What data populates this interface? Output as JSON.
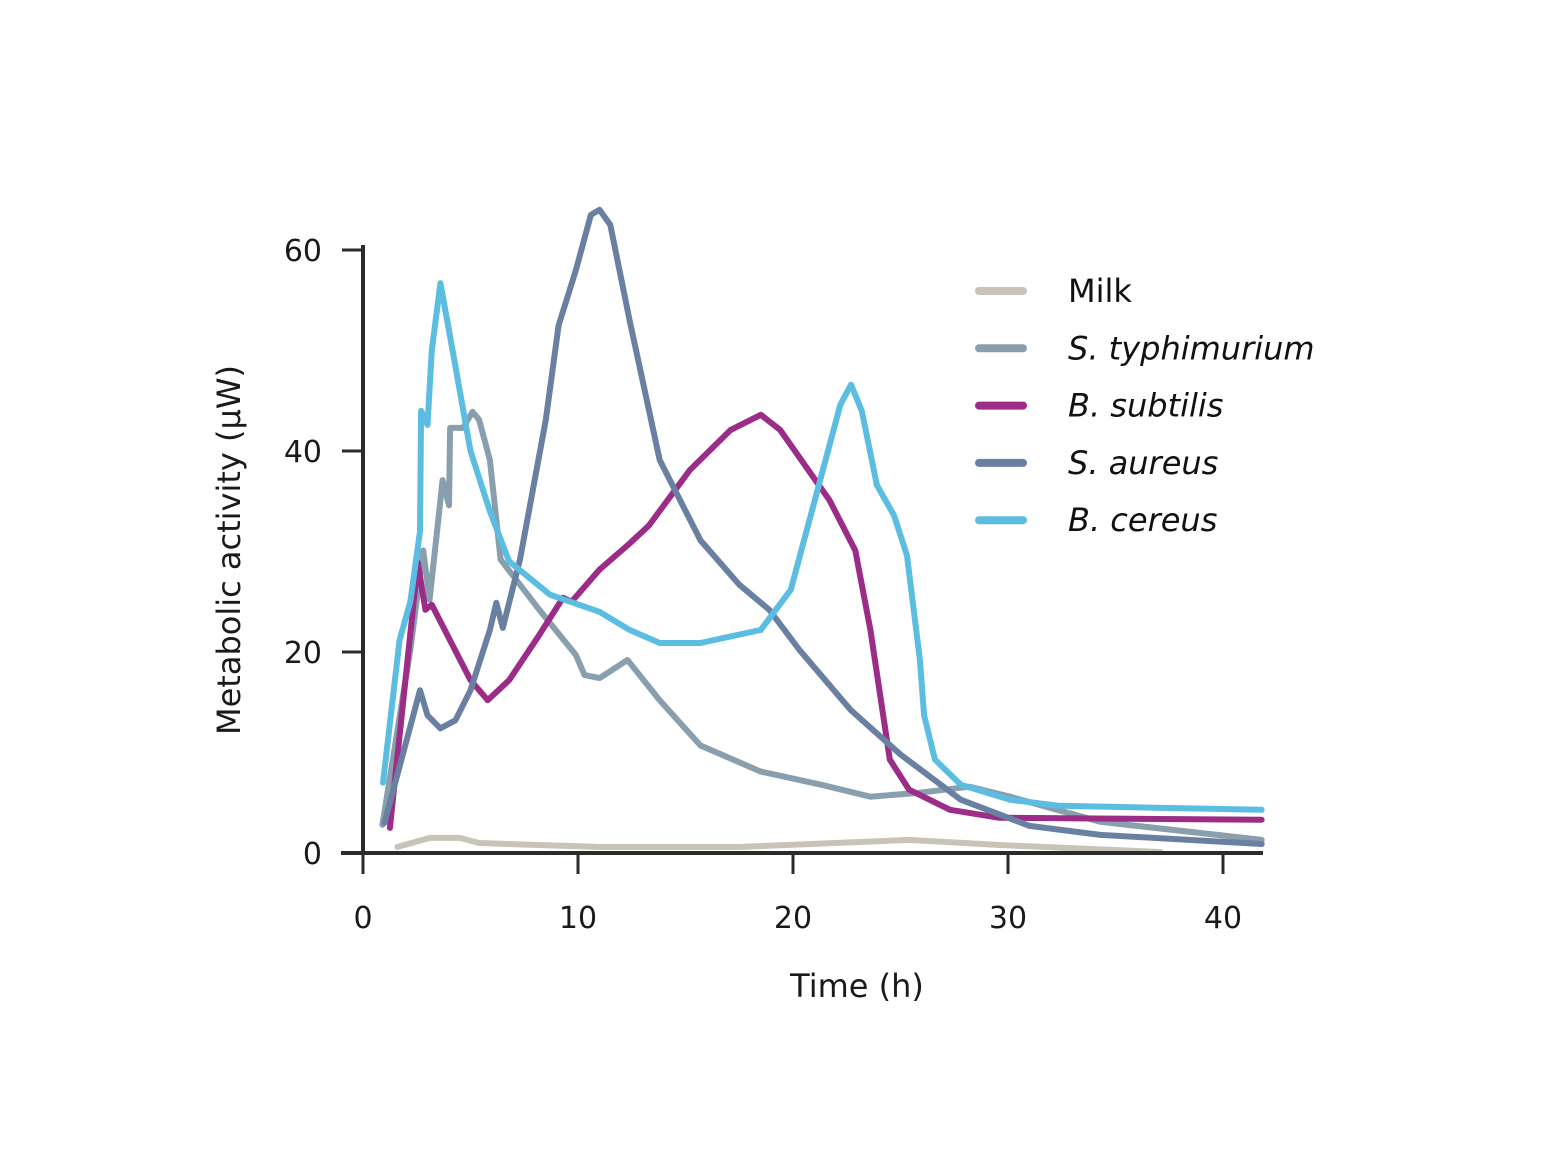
{
  "chart_data": {
    "type": "line",
    "title": "",
    "xlabel": "Time (h)",
    "ylabel": "Metabolic activity (µW)",
    "xlim": [
      0,
      42
    ],
    "ylim": [
      0,
      60
    ],
    "xticks": [
      0,
      10,
      20,
      30,
      40
    ],
    "yticks": [
      0,
      20,
      40,
      60
    ],
    "grid": false,
    "legend_placement": "top-right",
    "series": [
      {
        "name": "Milk",
        "italic": false,
        "color": "#c8c4b8",
        "points": [
          [
            1.6,
            0.6
          ],
          [
            3.1,
            1.5
          ],
          [
            4.5,
            1.5
          ],
          [
            5.4,
            1.0
          ],
          [
            11,
            0.6
          ],
          [
            17.5,
            0.6
          ],
          [
            25.4,
            1.3
          ],
          [
            29.6,
            0.8
          ],
          [
            37.1,
            0.1
          ]
        ]
      },
      {
        "name": "S. typhimurium",
        "italic": true,
        "color": "#8a9fae",
        "points": [
          [
            0.9,
            2.8
          ],
          [
            2.2,
            20.2
          ],
          [
            2.8,
            30.1
          ],
          [
            3.1,
            25.2
          ],
          [
            3.7,
            37.1
          ],
          [
            4.0,
            34.6
          ],
          [
            4.05,
            42.3
          ],
          [
            4.65,
            42.3
          ],
          [
            5.1,
            43.9
          ],
          [
            5.4,
            43.1
          ],
          [
            5.9,
            39.1
          ],
          [
            6.4,
            29.2
          ],
          [
            8.2,
            24.2
          ],
          [
            9.9,
            19.7
          ],
          [
            10.3,
            17.7
          ],
          [
            11,
            17.4
          ],
          [
            12.3,
            19.2
          ],
          [
            13.8,
            15.2
          ],
          [
            15.7,
            10.7
          ],
          [
            18.5,
            8.1
          ],
          [
            21.3,
            6.8
          ],
          [
            23.6,
            5.6
          ],
          [
            25.9,
            6.0
          ],
          [
            28.2,
            6.6
          ],
          [
            30.1,
            5.6
          ],
          [
            34.3,
            3.1
          ],
          [
            41.8,
            1.3
          ]
        ]
      },
      {
        "name": "B. subtilis",
        "italic": true,
        "color": "#9b2c87",
        "points": [
          [
            1.25,
            2.5
          ],
          [
            2.55,
            28.9
          ],
          [
            2.9,
            24.2
          ],
          [
            3.2,
            24.7
          ],
          [
            3.8,
            22.2
          ],
          [
            5.0,
            17.2
          ],
          [
            5.8,
            15.2
          ],
          [
            6.8,
            17.2
          ],
          [
            8.2,
            21.7
          ],
          [
            9.3,
            25.4
          ],
          [
            9.7,
            25.0
          ],
          [
            11,
            28.2
          ],
          [
            12.4,
            30.8
          ],
          [
            13.3,
            32.6
          ],
          [
            15.2,
            38.1
          ],
          [
            17.1,
            42.1
          ],
          [
            18.5,
            43.6
          ],
          [
            19.4,
            42.1
          ],
          [
            21.7,
            35.1
          ],
          [
            22.9,
            30.1
          ],
          [
            23.6,
            22.2
          ],
          [
            24.5,
            9.3
          ],
          [
            25.4,
            6.3
          ],
          [
            27.3,
            4.3
          ],
          [
            29.6,
            3.5
          ],
          [
            41.8,
            3.3
          ]
        ]
      },
      {
        "name": "S. aureus",
        "italic": true,
        "color": "#6a80a2",
        "points": [
          [
            1.0,
            3.0
          ],
          [
            2.65,
            16.2
          ],
          [
            3.0,
            13.7
          ],
          [
            3.6,
            12.4
          ],
          [
            4.3,
            13.2
          ],
          [
            5.0,
            16.2
          ],
          [
            5.9,
            22.2
          ],
          [
            6.2,
            24.9
          ],
          [
            6.5,
            22.4
          ],
          [
            7.3,
            29.2
          ],
          [
            8.5,
            43.1
          ],
          [
            9.1,
            52.5
          ],
          [
            9.9,
            58
          ],
          [
            10.6,
            63.5
          ],
          [
            11,
            64
          ],
          [
            11.5,
            62.5
          ],
          [
            12.4,
            53
          ],
          [
            13.8,
            39.1
          ],
          [
            15.7,
            31.1
          ],
          [
            17.5,
            26.7
          ],
          [
            18.9,
            24.2
          ],
          [
            20.3,
            20.2
          ],
          [
            22.7,
            14.2
          ],
          [
            25,
            9.8
          ],
          [
            27.8,
            5.3
          ],
          [
            31,
            2.7
          ],
          [
            34.3,
            1.8
          ],
          [
            41.8,
            0.9
          ]
        ]
      },
      {
        "name": "B. cereus",
        "italic": true,
        "color": "#5bbde2",
        "points": [
          [
            0.93,
            7
          ],
          [
            1.7,
            21.2
          ],
          [
            2.2,
            25
          ],
          [
            2.65,
            32
          ],
          [
            2.7,
            44
          ],
          [
            3.0,
            42.6
          ],
          [
            3.2,
            50
          ],
          [
            3.6,
            56.7
          ],
          [
            4.0,
            52
          ],
          [
            5.0,
            40
          ],
          [
            5.9,
            34
          ],
          [
            6.8,
            29
          ],
          [
            8.7,
            25.7
          ],
          [
            11,
            24
          ],
          [
            12.4,
            22.2
          ],
          [
            13.8,
            20.9
          ],
          [
            15.7,
            20.9
          ],
          [
            18.5,
            22.2
          ],
          [
            19.9,
            26.2
          ],
          [
            21,
            35
          ],
          [
            22.2,
            44.6
          ],
          [
            22.7,
            46.6
          ],
          [
            23.2,
            44
          ],
          [
            23.9,
            36.6
          ],
          [
            24.7,
            33.6
          ],
          [
            25.3,
            29.6
          ],
          [
            25.9,
            19.2
          ],
          [
            26.1,
            13.7
          ],
          [
            26.6,
            9.3
          ],
          [
            27.8,
            6.8
          ],
          [
            30.1,
            5.3
          ],
          [
            32.4,
            4.7
          ],
          [
            41.8,
            4.3
          ]
        ]
      }
    ]
  }
}
